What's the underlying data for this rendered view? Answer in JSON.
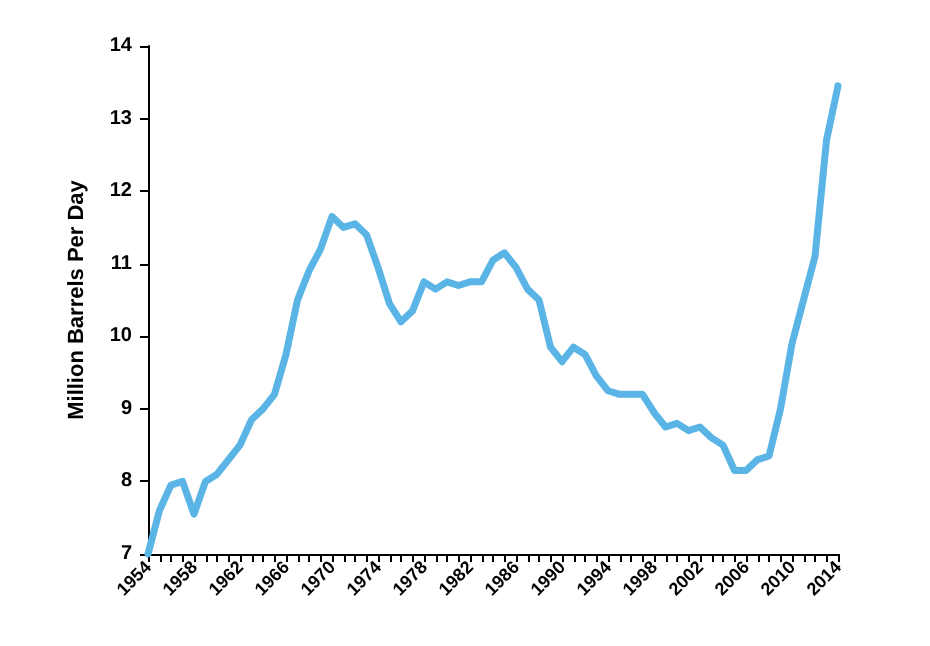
{
  "chart_data": {
    "type": "line",
    "ylabel": "Million Barrels Per Day",
    "x": [
      1954,
      1955,
      1956,
      1957,
      1958,
      1959,
      1960,
      1961,
      1962,
      1963,
      1964,
      1965,
      1966,
      1967,
      1968,
      1969,
      1970,
      1971,
      1972,
      1973,
      1974,
      1975,
      1976,
      1977,
      1978,
      1979,
      1980,
      1981,
      1982,
      1983,
      1984,
      1985,
      1986,
      1987,
      1988,
      1989,
      1990,
      1991,
      1992,
      1993,
      1994,
      1995,
      1996,
      1997,
      1998,
      1999,
      2000,
      2001,
      2002,
      2003,
      2004,
      2005,
      2006,
      2007,
      2008,
      2009,
      2010,
      2011,
      2012,
      2013,
      2014
    ],
    "series": [
      {
        "color": "#5ab4e5",
        "values": [
          7.0,
          7.6,
          7.95,
          8.0,
          7.55,
          8.0,
          8.1,
          8.3,
          8.5,
          8.85,
          9.0,
          9.2,
          9.75,
          10.5,
          10.9,
          11.2,
          11.65,
          11.5,
          11.55,
          11.4,
          10.95,
          10.45,
          10.2,
          10.35,
          10.75,
          10.65,
          10.75,
          10.7,
          10.75,
          10.75,
          11.05,
          11.15,
          10.95,
          10.65,
          10.5,
          9.85,
          9.65,
          9.85,
          9.75,
          9.45,
          9.25,
          9.2,
          9.2,
          9.2,
          8.95,
          8.75,
          8.8,
          8.7,
          8.75,
          8.6,
          8.5,
          8.15,
          8.15,
          8.3,
          8.35,
          9.0,
          9.9,
          10.5,
          11.1,
          12.7,
          13.45
        ]
      }
    ],
    "xlim": [
      1954,
      2014
    ],
    "xticks": [
      1954,
      {
        "value": 1955,
        "label": null
      },
      {
        "value": 1956,
        "label": null
      },
      {
        "value": 1957,
        "label": null
      },
      1958,
      {
        "value": 1959,
        "label": null
      },
      {
        "value": 1960,
        "label": null
      },
      {
        "value": 1961,
        "label": null
      },
      1962,
      {
        "value": 1963,
        "label": null
      },
      {
        "value": 1964,
        "label": null
      },
      {
        "value": 1965,
        "label": null
      },
      1966,
      {
        "value": 1967,
        "label": null
      },
      {
        "value": 1968,
        "label": null
      },
      {
        "value": 1969,
        "label": null
      },
      1970,
      {
        "value": 1971,
        "label": null
      },
      {
        "value": 1972,
        "label": null
      },
      {
        "value": 1973,
        "label": null
      },
      1974,
      {
        "value": 1975,
        "label": null
      },
      {
        "value": 1976,
        "label": null
      },
      {
        "value": 1977,
        "label": null
      },
      1978,
      {
        "value": 1979,
        "label": null
      },
      {
        "value": 1980,
        "label": null
      },
      {
        "value": 1981,
        "label": null
      },
      1982,
      {
        "value": 1983,
        "label": null
      },
      {
        "value": 1984,
        "label": null
      },
      {
        "value": 1985,
        "label": null
      },
      1986,
      {
        "value": 1987,
        "label": null
      },
      {
        "value": 1988,
        "label": null
      },
      {
        "value": 1989,
        "label": null
      },
      1990,
      {
        "value": 1991,
        "label": null
      },
      {
        "value": 1992,
        "label": null
      },
      {
        "value": 1993,
        "label": null
      },
      1994,
      {
        "value": 1995,
        "label": null
      },
      {
        "value": 1996,
        "label": null
      },
      {
        "value": 1997,
        "label": null
      },
      1998,
      {
        "value": 1999,
        "label": null
      },
      {
        "value": 2000,
        "label": null
      },
      {
        "value": 2001,
        "label": null
      },
      2002,
      {
        "value": 2003,
        "label": null
      },
      {
        "value": 2004,
        "label": null
      },
      {
        "value": 2005,
        "label": null
      },
      2006,
      {
        "value": 2007,
        "label": null
      },
      {
        "value": 2008,
        "label": null
      },
      {
        "value": 2009,
        "label": null
      },
      2010,
      {
        "value": 2011,
        "label": null
      },
      {
        "value": 2012,
        "label": null
      },
      {
        "value": 2013,
        "label": null
      },
      2014
    ],
    "ylim": [
      7,
      14
    ],
    "yticks": [
      7,
      8,
      9,
      10,
      11,
      12,
      13,
      14
    ],
    "grid": false,
    "marker": "none",
    "line_style": "solid"
  }
}
